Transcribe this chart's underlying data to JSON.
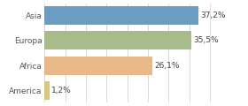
{
  "categories": [
    "Asia",
    "Europa",
    "Africa",
    "America"
  ],
  "values": [
    37.2,
    35.5,
    26.1,
    1.2
  ],
  "labels": [
    "37,2%",
    "35,5%",
    "26,1%",
    "1,2%"
  ],
  "bar_colors": [
    "#6b9dc2",
    "#a8bb8a",
    "#e8b88a",
    "#d4c97a"
  ],
  "background_color": "#ffffff",
  "xlim": [
    0,
    42
  ],
  "bar_height": 0.75,
  "label_fontsize": 6.5,
  "category_fontsize": 6.5,
  "grid_color": "#cccccc"
}
